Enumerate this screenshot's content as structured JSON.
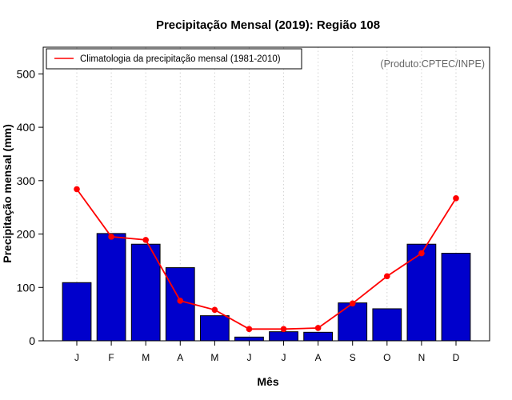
{
  "chart_data": {
    "type": "bar",
    "title": "Precipitação Mensal (2019): Região 108",
    "xlabel": "Mês",
    "ylabel": "Precipitação mensal (mm)",
    "ylim": [
      0,
      550
    ],
    "yticks": [
      0,
      100,
      200,
      300,
      400,
      500
    ],
    "categories": [
      "J",
      "F",
      "M",
      "A",
      "M",
      "J",
      "J",
      "A",
      "S",
      "O",
      "N",
      "D"
    ],
    "grid": "vertical dotted",
    "series": [
      {
        "name": "Precipitação mensal (2019)",
        "kind": "bar",
        "color": "#0000cc",
        "values": [
          109,
          201,
          181,
          137,
          47,
          7,
          17,
          16,
          71,
          60,
          181,
          164
        ]
      },
      {
        "name": "Climatologia da precipitação mensal (1981-2010)",
        "kind": "line",
        "color": "#ff0000",
        "values": [
          284,
          195,
          189,
          75,
          58,
          22,
          22,
          24,
          70,
          121,
          164,
          267
        ]
      }
    ],
    "legend": {
      "placement": "top-left",
      "entries": [
        "Climatologia da precipitação mensal (1981-2010)"
      ]
    },
    "annotation": "(Produto:CPTEC/INPE)"
  }
}
